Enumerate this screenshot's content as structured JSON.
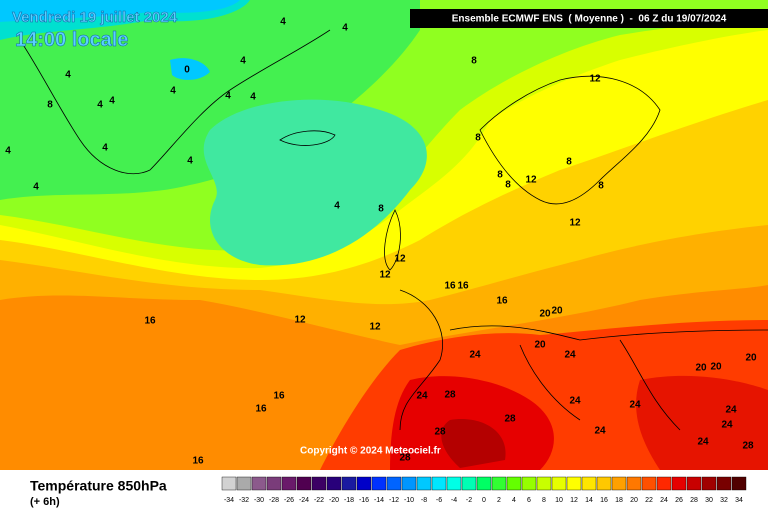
{
  "header": {
    "date": "Vendredi 19 juillet 2024",
    "time": "14:00 locale",
    "model": "Ensemble ECMWF ENS  ( Moyenne )  -  06 Z du 19/07/2024"
  },
  "copyright": "Copyright © 2024 Meteociel.fr",
  "footer": {
    "title": "Température 850hPa",
    "lead": "(+ 6h)"
  },
  "colorbar": {
    "ticks": [
      -34,
      -32,
      -30,
      -28,
      -26,
      -24,
      -22,
      -20,
      -18,
      -16,
      -14,
      -12,
      -10,
      -8,
      -6,
      -4,
      -2,
      0,
      2,
      4,
      6,
      8,
      10,
      12,
      14,
      16,
      18,
      20,
      22,
      24,
      26,
      28,
      30,
      32,
      34
    ],
    "colors": [
      "#d2d2d2",
      "#aaaaaa",
      "#8c5a8c",
      "#7a3c7a",
      "#6a1a6a",
      "#500050",
      "#3c0064",
      "#28007a",
      "#1a1aa0",
      "#0000c8",
      "#0032ff",
      "#0064ff",
      "#0096ff",
      "#00c8ff",
      "#00e6ff",
      "#00ffe6",
      "#00ffb4",
      "#00ff64",
      "#32ff32",
      "#64ff00",
      "#96ff00",
      "#c8ff00",
      "#e6ff00",
      "#ffff00",
      "#ffe600",
      "#ffc800",
      "#ffa000",
      "#ff7800",
      "#ff5000",
      "#ff2800",
      "#e60000",
      "#c80000",
      "#a00000",
      "#780000",
      "#500000"
    ]
  },
  "contour_labels": [
    4,
    4,
    0,
    4,
    4,
    4,
    4,
    4,
    8,
    4,
    4,
    4,
    4,
    4,
    4,
    4,
    8,
    8,
    12,
    8,
    8,
    8,
    8,
    12,
    8,
    12,
    12,
    12,
    16,
    16,
    16,
    12,
    12,
    16,
    20,
    20,
    20,
    24,
    24,
    24,
    28,
    24,
    24,
    20,
    20,
    20,
    24,
    24,
    28,
    28,
    24,
    24,
    28,
    16,
    16,
    16,
    28
  ]
}
